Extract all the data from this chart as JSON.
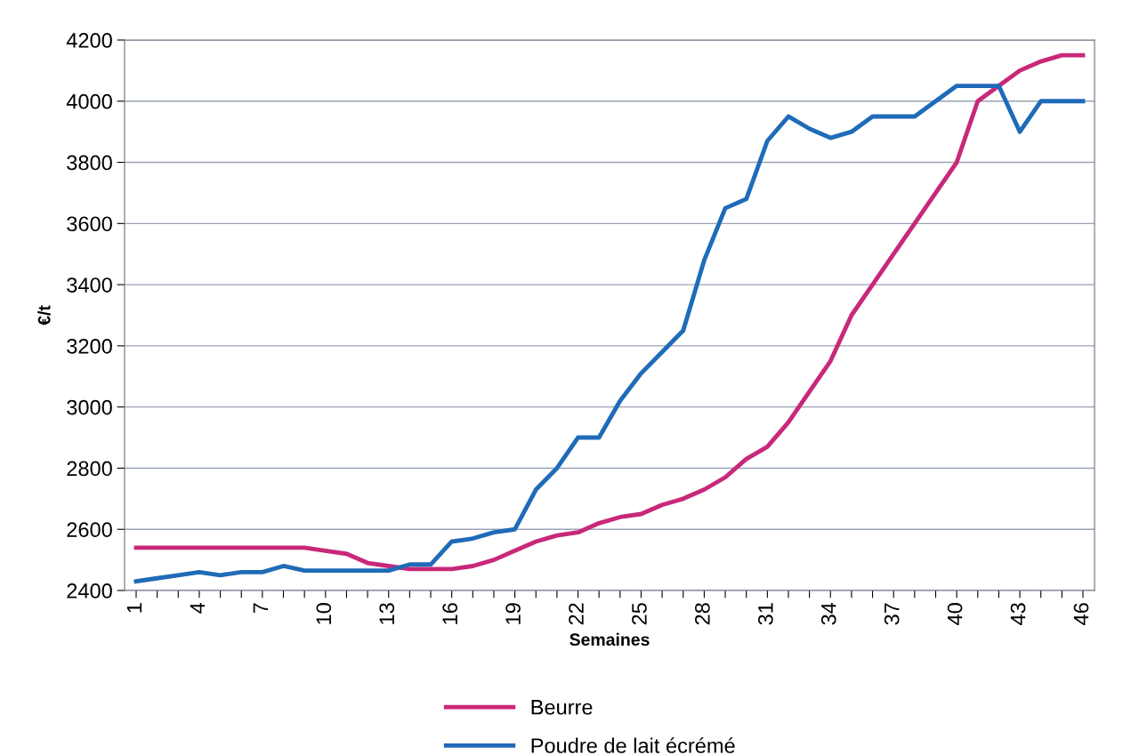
{
  "chart_data": {
    "type": "line",
    "xlabel": "Semaines",
    "ylabel": "€/t",
    "categories": [
      "1",
      null,
      null,
      "4",
      null,
      null,
      "7",
      null,
      null,
      "10",
      null,
      null,
      "13",
      null,
      null,
      "16",
      null,
      null,
      "19",
      null,
      null,
      "22",
      null,
      null,
      "25",
      null,
      null,
      "28",
      null,
      null,
      "31",
      null,
      null,
      "34",
      null,
      null,
      "37",
      null,
      null,
      "40",
      null,
      null,
      "43",
      null,
      null,
      "46"
    ],
    "series": [
      {
        "name": "Beurre",
        "color": "#c8287a",
        "values": [
          2540,
          2540,
          2540,
          2540,
          2540,
          2540,
          2540,
          2540,
          2540,
          2530,
          2520,
          2490,
          2480,
          2470,
          2470,
          2470,
          2480,
          2500,
          2530,
          2560,
          2580,
          2590,
          2620,
          2640,
          2650,
          2680,
          2700,
          2730,
          2770,
          2830,
          2870,
          2950,
          3050,
          3150,
          3300,
          3400,
          3500,
          3600,
          3700,
          3800,
          4000,
          4050,
          4100,
          4130,
          4150,
          4150
        ]
      },
      {
        "name": "Poudre de lait écrémé",
        "color": "#1f6bb8",
        "values": [
          2430,
          2440,
          2450,
          2460,
          2450,
          2460,
          2460,
          2480,
          2465,
          2465,
          2465,
          2465,
          2465,
          2485,
          2485,
          2560,
          2570,
          2590,
          2600,
          2730,
          2800,
          2900,
          2900,
          3020,
          3110,
          3180,
          3250,
          3480,
          3650,
          3680,
          3870,
          3950,
          3910,
          3880,
          3900,
          3950,
          3950,
          3950,
          4000,
          4050,
          4050,
          4050,
          3900,
          4000,
          4000,
          4000
        ]
      }
    ],
    "ylim": [
      2400,
      4200
    ],
    "yticks": [
      2400,
      2600,
      2800,
      3000,
      3200,
      3400,
      3600,
      3800,
      4000,
      4200
    ],
    "grid": "y",
    "legend": "bottom",
    "marker": "none",
    "line_style": "solid"
  }
}
